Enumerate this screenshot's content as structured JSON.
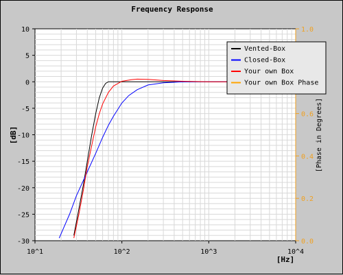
{
  "chart_data": {
    "type": "line",
    "title": "Frequency Response",
    "xlabel": "[Hz]",
    "ylabel": "[dB]",
    "y2label": "[Phase in Degrees]",
    "x_scale": "log",
    "xlim": [
      10,
      10000
    ],
    "ylim": [
      -30,
      10
    ],
    "y2lim": [
      0.0,
      1.0
    ],
    "x_tick_labels": [
      "10^1",
      "10^2",
      "10^3",
      "10^4"
    ],
    "y_tick_labels": [
      "10",
      "5",
      "0",
      "-5",
      "-10",
      "-15",
      "-20",
      "-25",
      "-30"
    ],
    "y2_tick_labels": [
      "1.0",
      "0.8",
      "0.6",
      "0.4",
      "0.2",
      "0.0"
    ],
    "grid": true,
    "legend_position": "top-right",
    "colors": {
      "background": "#c8c8c8",
      "plot_background": "#ffffff",
      "grid": "#d8d8d8",
      "secondary_axis": "#f0a020",
      "legend_background": "#e8e8e8"
    },
    "series": [
      {
        "name": "Vented-Box",
        "color": "#000000",
        "x": [
          28,
          32,
          36,
          40,
          45,
          50,
          55,
          60,
          65,
          70,
          80,
          100,
          200,
          500,
          1000,
          3000
        ],
        "y": [
          -29,
          -24,
          -19.5,
          -15,
          -10,
          -6,
          -3,
          -1.2,
          -0.3,
          0,
          0,
          0,
          0,
          0,
          0,
          0
        ]
      },
      {
        "name": "Closed-Box",
        "color": "#0000ff",
        "x": [
          19,
          25,
          30,
          40,
          50,
          60,
          70,
          80,
          100,
          120,
          150,
          200,
          300,
          500,
          1000,
          3000
        ],
        "y": [
          -29.5,
          -25,
          -21.5,
          -17,
          -13.5,
          -10.5,
          -8.2,
          -6.5,
          -4,
          -2.6,
          -1.5,
          -0.6,
          -0.2,
          0,
          0,
          0
        ]
      },
      {
        "name": "Your own Box",
        "color": "#ff0000",
        "x": [
          28,
          32,
          36,
          40,
          45,
          50,
          55,
          60,
          70,
          80,
          100,
          130,
          150,
          200,
          300,
          500,
          1000,
          3000
        ],
        "y": [
          -29.5,
          -25,
          -20.5,
          -16,
          -12,
          -8.5,
          -6,
          -4.2,
          -2,
          -0.8,
          0.1,
          0.4,
          0.5,
          0.45,
          0.25,
          0.1,
          0,
          0
        ]
      },
      {
        "name": "Your own Box Phase",
        "color": "#ffa500",
        "axis": "right",
        "x": [],
        "y": []
      }
    ]
  }
}
